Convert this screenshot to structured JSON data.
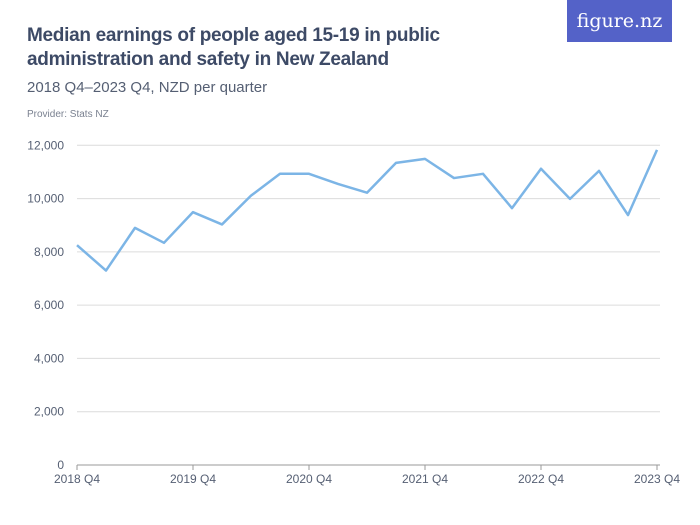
{
  "header": {
    "title": "Median earnings of people aged 15-19 in public administration and safety in New Zealand",
    "subtitle": "2018 Q4–2023 Q4, NZD per quarter",
    "provider": "Provider: Stats NZ",
    "logo": "figure.nz",
    "logo_color": "#5462c8"
  },
  "chart_data": {
    "type": "line",
    "title": "Median earnings of people aged 15-19 in public administration and safety in New Zealand",
    "subtitle": "2018 Q4–2023 Q4, NZD per quarter",
    "x": [
      "2018 Q4",
      "2019 Q1",
      "2019 Q2",
      "2019 Q3",
      "2019 Q4",
      "2020 Q1",
      "2020 Q2",
      "2020 Q3",
      "2020 Q4",
      "2021 Q1",
      "2021 Q2",
      "2021 Q3",
      "2021 Q4",
      "2022 Q1",
      "2022 Q2",
      "2022 Q3",
      "2022 Q4",
      "2023 Q1",
      "2023 Q2",
      "2023 Q3",
      "2023 Q4"
    ],
    "series": [
      {
        "values": [
          8250,
          7300,
          8900,
          8340,
          9490,
          9030,
          10110,
          10930,
          10930,
          10550,
          10220,
          11340,
          11490,
          10770,
          10930,
          9640,
          11120,
          9990,
          11040,
          9380,
          11830
        ],
        "color": "#7cb5e6"
      }
    ],
    "ylim": [
      0,
      12000
    ],
    "yticks": [
      "0",
      "2,000",
      "4,000",
      "6,000",
      "8,000",
      "10,000",
      "12,000"
    ],
    "ytick_values": [
      0,
      2000,
      4000,
      6000,
      8000,
      10000,
      12000
    ],
    "xticks": [
      "2018 Q4",
      "2019 Q4",
      "2020 Q4",
      "2021 Q4",
      "2022 Q4",
      "2023 Q4"
    ],
    "grid": true
  }
}
